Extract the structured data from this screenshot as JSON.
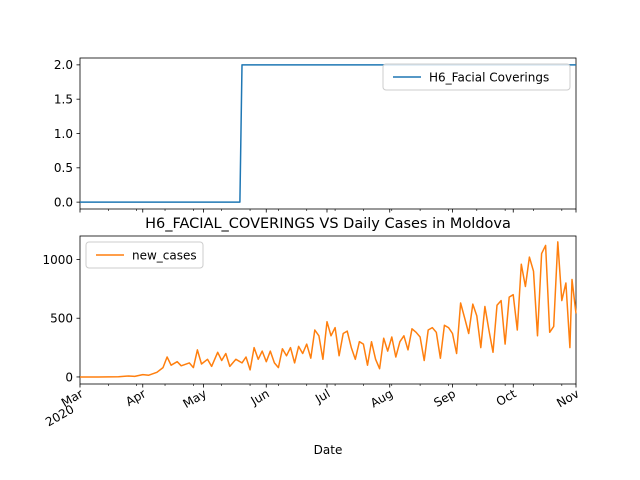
{
  "chart_data": [
    {
      "type": "line",
      "series": [
        {
          "name": "H6_Facial Coverings",
          "color": "#1f77b4",
          "points": [
            [
              "2020-03-01",
              0
            ],
            [
              "2020-05-19",
              0
            ],
            [
              "2020-05-20",
              2
            ],
            [
              "2020-11-01",
              2
            ]
          ]
        }
      ],
      "ylim": [
        -0.1,
        2.1
      ],
      "yticks": [
        0.0,
        0.5,
        1.0,
        1.5,
        2.0
      ],
      "ytick_labels": [
        "0.0",
        "0.5",
        "1.0",
        "1.5",
        "2.0"
      ],
      "legend_position": "upper right",
      "shares_x_with_lower_plot": true
    },
    {
      "type": "line",
      "title": "H6_FACIAL_COVERINGS VS Daily Cases in Moldova",
      "xlabel": "Date",
      "series": [
        {
          "name": "new_cases",
          "color": "#ff7f0e",
          "points": [
            [
              "2020-03-01",
              0
            ],
            [
              "2020-03-10",
              0
            ],
            [
              "2020-03-20",
              2
            ],
            [
              "2020-03-25",
              8
            ],
            [
              "2020-03-28",
              5
            ],
            [
              "2020-04-01",
              20
            ],
            [
              "2020-04-04",
              15
            ],
            [
              "2020-04-08",
              40
            ],
            [
              "2020-04-11",
              80
            ],
            [
              "2020-04-13",
              170
            ],
            [
              "2020-04-15",
              100
            ],
            [
              "2020-04-18",
              130
            ],
            [
              "2020-04-20",
              95
            ],
            [
              "2020-04-24",
              120
            ],
            [
              "2020-04-26",
              80
            ],
            [
              "2020-04-28",
              230
            ],
            [
              "2020-04-30",
              110
            ],
            [
              "2020-05-03",
              150
            ],
            [
              "2020-05-05",
              90
            ],
            [
              "2020-05-08",
              210
            ],
            [
              "2020-05-10",
              140
            ],
            [
              "2020-05-12",
              200
            ],
            [
              "2020-05-14",
              90
            ],
            [
              "2020-05-17",
              150
            ],
            [
              "2020-05-20",
              120
            ],
            [
              "2020-05-22",
              170
            ],
            [
              "2020-05-24",
              60
            ],
            [
              "2020-05-26",
              250
            ],
            [
              "2020-05-28",
              150
            ],
            [
              "2020-05-30",
              220
            ],
            [
              "2020-06-01",
              130
            ],
            [
              "2020-06-03",
              220
            ],
            [
              "2020-06-05",
              120
            ],
            [
              "2020-06-07",
              80
            ],
            [
              "2020-06-09",
              240
            ],
            [
              "2020-06-11",
              180
            ],
            [
              "2020-06-13",
              250
            ],
            [
              "2020-06-15",
              120
            ],
            [
              "2020-06-17",
              260
            ],
            [
              "2020-06-19",
              200
            ],
            [
              "2020-06-21",
              280
            ],
            [
              "2020-06-23",
              160
            ],
            [
              "2020-06-25",
              400
            ],
            [
              "2020-06-27",
              350
            ],
            [
              "2020-06-29",
              150
            ],
            [
              "2020-07-01",
              470
            ],
            [
              "2020-07-03",
              350
            ],
            [
              "2020-07-05",
              420
            ],
            [
              "2020-07-07",
              180
            ],
            [
              "2020-07-09",
              370
            ],
            [
              "2020-07-11",
              390
            ],
            [
              "2020-07-13",
              250
            ],
            [
              "2020-07-15",
              150
            ],
            [
              "2020-07-17",
              300
            ],
            [
              "2020-07-19",
              280
            ],
            [
              "2020-07-21",
              100
            ],
            [
              "2020-07-23",
              300
            ],
            [
              "2020-07-25",
              150
            ],
            [
              "2020-07-27",
              70
            ],
            [
              "2020-07-29",
              330
            ],
            [
              "2020-07-31",
              220
            ],
            [
              "2020-08-02",
              340
            ],
            [
              "2020-08-04",
              170
            ],
            [
              "2020-08-06",
              300
            ],
            [
              "2020-08-08",
              350
            ],
            [
              "2020-08-10",
              230
            ],
            [
              "2020-08-12",
              410
            ],
            [
              "2020-08-14",
              380
            ],
            [
              "2020-08-16",
              340
            ],
            [
              "2020-08-18",
              140
            ],
            [
              "2020-08-20",
              400
            ],
            [
              "2020-08-22",
              420
            ],
            [
              "2020-08-24",
              380
            ],
            [
              "2020-08-26",
              160
            ],
            [
              "2020-08-28",
              440
            ],
            [
              "2020-08-30",
              420
            ],
            [
              "2020-09-01",
              370
            ],
            [
              "2020-09-03",
              200
            ],
            [
              "2020-09-05",
              630
            ],
            [
              "2020-09-07",
              500
            ],
            [
              "2020-09-09",
              370
            ],
            [
              "2020-09-11",
              620
            ],
            [
              "2020-09-13",
              520
            ],
            [
              "2020-09-15",
              250
            ],
            [
              "2020-09-17",
              600
            ],
            [
              "2020-09-19",
              400
            ],
            [
              "2020-09-21",
              210
            ],
            [
              "2020-09-23",
              610
            ],
            [
              "2020-09-25",
              650
            ],
            [
              "2020-09-27",
              280
            ],
            [
              "2020-09-29",
              680
            ],
            [
              "2020-10-01",
              700
            ],
            [
              "2020-10-03",
              400
            ],
            [
              "2020-10-05",
              960
            ],
            [
              "2020-10-07",
              770
            ],
            [
              "2020-10-09",
              1020
            ],
            [
              "2020-10-11",
              900
            ],
            [
              "2020-10-13",
              350
            ],
            [
              "2020-10-15",
              1050
            ],
            [
              "2020-10-17",
              1120
            ],
            [
              "2020-10-19",
              380
            ],
            [
              "2020-10-21",
              430
            ],
            [
              "2020-10-23",
              1150
            ],
            [
              "2020-10-25",
              650
            ],
            [
              "2020-10-27",
              800
            ],
            [
              "2020-10-29",
              250
            ],
            [
              "2020-10-30",
              830
            ],
            [
              "2020-11-01",
              540
            ]
          ]
        }
      ],
      "ylim": [
        -60,
        1200
      ],
      "yticks": [
        0,
        500,
        1000
      ],
      "ytick_labels": [
        "0",
        "500",
        "1000"
      ],
      "xlim": [
        "2020-03-01",
        "2020-11-01"
      ],
      "xticks": [
        "2020-03-01",
        "2020-04-01",
        "2020-05-01",
        "2020-06-01",
        "2020-07-01",
        "2020-08-01",
        "2020-09-01",
        "2020-10-01",
        "2020-11-01"
      ],
      "xtick_labels": [
        "Mar\n2020",
        "Apr",
        "May",
        "Jun",
        "Jul",
        "Aug",
        "Sep",
        "Oct",
        "Nov"
      ],
      "legend_position": "upper left"
    }
  ]
}
